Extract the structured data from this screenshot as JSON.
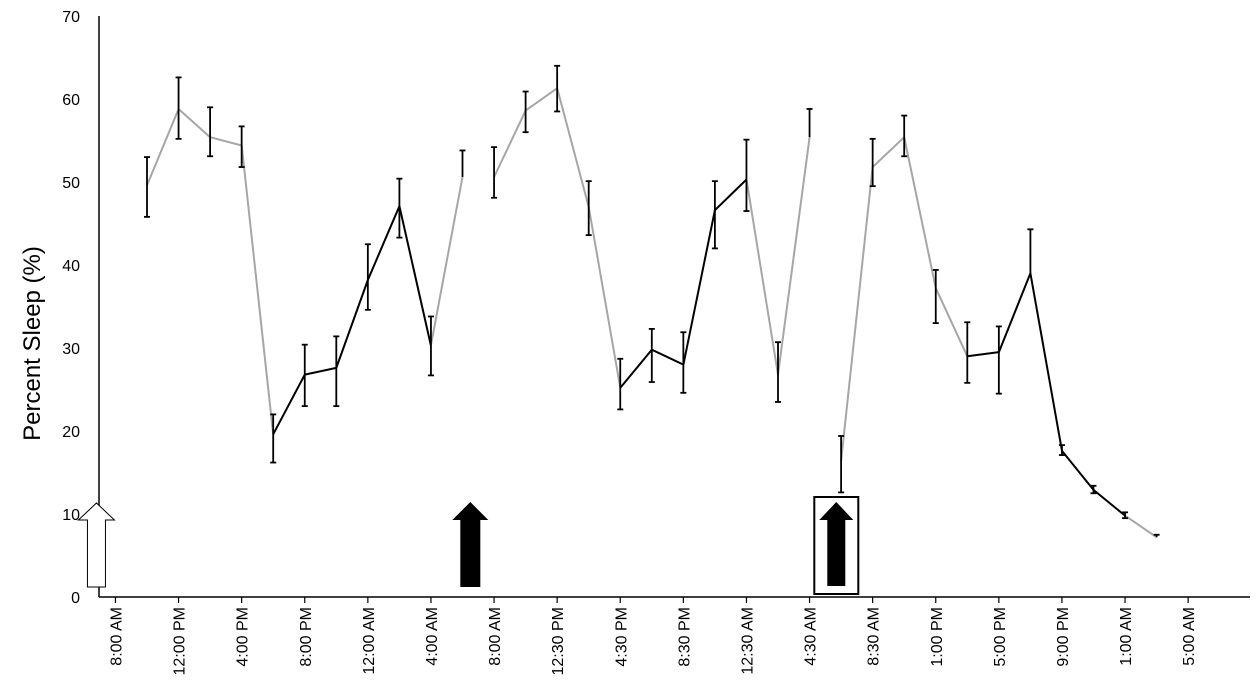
{
  "chart_data": {
    "type": "line",
    "ylabel": "Percent Sleep (%)",
    "xlabel": "",
    "title": "",
    "ylim": [
      0,
      70
    ],
    "yticks": [
      0,
      10,
      20,
      30,
      40,
      50,
      60,
      70
    ],
    "grid": false,
    "legend": "none",
    "x_tick_labels": [
      "8:00 AM",
      "12:00 PM",
      "4:00 PM",
      "8:00 PM",
      "12:00 AM",
      "4:00 AM",
      "8:00 AM",
      "12:30 PM",
      "4:30 PM",
      "8:30 PM",
      "12:30 AM",
      "4:30 AM",
      "8:30 AM",
      "1:00 PM",
      "5:00 PM",
      "9:00 PM",
      "1:00 AM",
      "5:00 AM"
    ],
    "colors": {
      "light_phase": "#a6a6a6",
      "dark_phase": "#000000",
      "error_bar": "#000000"
    },
    "points": [
      {
        "y": 49.6,
        "err_lo": 3.8,
        "err_hi": 3.4
      },
      {
        "y": 58.8,
        "err_lo": 3.6,
        "err_hi": 3.8
      },
      {
        "y": 55.4,
        "err_lo": 2.3,
        "err_hi": 3.6
      },
      {
        "y": 54.4,
        "err_lo": 2.6,
        "err_hi": 2.3
      },
      {
        "y": 19.6,
        "err_lo": 3.4,
        "err_hi": 2.4
      },
      {
        "y": 26.8,
        "err_lo": 3.8,
        "err_hi": 3.6
      },
      {
        "y": 27.6,
        "err_lo": 4.6,
        "err_hi": 3.8
      },
      {
        "y": 38.2,
        "err_lo": 3.6,
        "err_hi": 4.3
      },
      {
        "y": 47.1,
        "err_lo": 3.8,
        "err_hi": 3.3
      },
      {
        "y": 30.3,
        "err_lo": 3.6,
        "err_hi": 3.5
      },
      {
        "y": 50.6,
        "err_lo": 0,
        "err_hi": 3.2
      },
      {
        "y": 50.6,
        "err_lo": 2.5,
        "err_hi": 3.6
      },
      {
        "y": 58.6,
        "err_lo": 2.6,
        "err_hi": 2.3
      },
      {
        "y": 61.3,
        "err_lo": 2.8,
        "err_hi": 2.7
      },
      {
        "y": 47.0,
        "err_lo": 3.4,
        "err_hi": 3.1
      },
      {
        "y": 25.2,
        "err_lo": 2.6,
        "err_hi": 3.5
      },
      {
        "y": 29.8,
        "err_lo": 3.9,
        "err_hi": 2.5
      },
      {
        "y": 28.0,
        "err_lo": 3.4,
        "err_hi": 3.9
      },
      {
        "y": 46.6,
        "err_lo": 4.6,
        "err_hi": 3.5
      },
      {
        "y": 50.3,
        "err_lo": 3.8,
        "err_hi": 4.8
      },
      {
        "y": 26.8,
        "err_lo": 3.3,
        "err_hi": 3.9
      },
      {
        "y": 55.4,
        "err_lo": 0,
        "err_hi": 3.4
      },
      {
        "y": 16.4,
        "err_lo": 3.8,
        "err_hi": 3.0
      },
      {
        "y": 51.8,
        "err_lo": 2.3,
        "err_hi": 3.4
      },
      {
        "y": 55.4,
        "err_lo": 2.3,
        "err_hi": 2.6
      },
      {
        "y": 37.2,
        "err_lo": 4.2,
        "err_hi": 2.2
      },
      {
        "y": 29.0,
        "err_lo": 3.2,
        "err_hi": 4.1
      },
      {
        "y": 29.5,
        "err_lo": 5.0,
        "err_hi": 3.1
      },
      {
        "y": 39.0,
        "err_lo": 0,
        "err_hi": 5.3
      },
      {
        "y": 17.6,
        "err_lo": 0.5,
        "err_hi": 0.7
      },
      {
        "y": 12.9,
        "err_lo": 0.4,
        "err_hi": 0.5
      },
      {
        "y": 9.8,
        "err_lo": 0.3,
        "err_hi": 0.4
      },
      {
        "y": 7.2,
        "err_lo": 0,
        "err_hi": 0.3
      }
    ],
    "segments": [
      {
        "phase": "light",
        "from": 0,
        "to": 3
      },
      {
        "phase": "light",
        "from": 3,
        "to": 4
      },
      {
        "phase": "dark",
        "from": 4,
        "to": 9
      },
      {
        "phase": "light",
        "from": 9,
        "to": 10
      },
      {
        "phase": "light",
        "from": 11,
        "to": 15
      },
      {
        "phase": "dark",
        "from": 15,
        "to": 19
      },
      {
        "phase": "light",
        "from": 19,
        "to": 21
      },
      {
        "phase": "light",
        "from": 22,
        "to": 26
      },
      {
        "phase": "dark",
        "from": 26,
        "to": 29
      },
      {
        "phase": "dark",
        "from": 29,
        "to": 31
      },
      {
        "phase": "light",
        "from": 31,
        "to": 32
      }
    ],
    "annotations": [
      {
        "type": "arrow",
        "style": "open",
        "at_index": -1.0
      },
      {
        "type": "arrow",
        "style": "filled",
        "at_index": 10.85
      },
      {
        "type": "arrow",
        "style": "filled-boxed",
        "at_index": 22.45
      }
    ]
  }
}
